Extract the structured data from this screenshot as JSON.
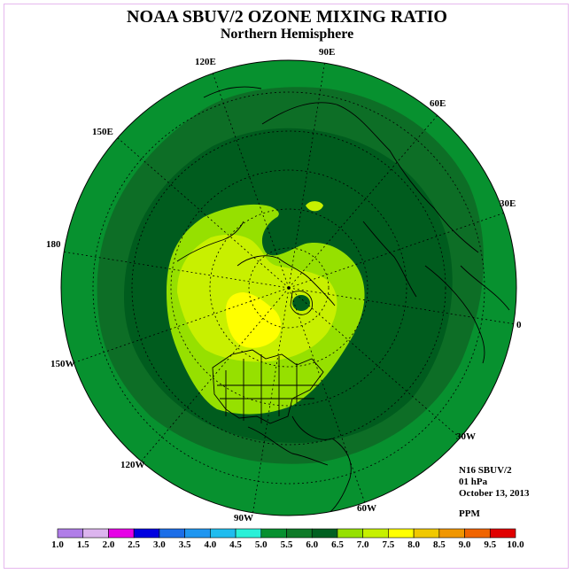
{
  "title": "NOAA SBUV/2 OZONE MIXING RATIO",
  "subtitle": "Northern Hemisphere",
  "info": {
    "instrument": "N16 SBUV/2",
    "level": "01 hPa",
    "date": "October 13, 2013",
    "units": "PPM"
  },
  "longitude_labels": {
    "lon_90E": "90E",
    "lon_60E": "60E",
    "lon_30E": "30E",
    "lon_0": "0",
    "lon_30W": "30W",
    "lon_60W": "60W",
    "lon_90W": "90W",
    "lon_120W": "120W",
    "lon_150W": "150W",
    "lon_180": "180",
    "lon_150E": "150E",
    "lon_120E": "120E"
  },
  "colorbar": {
    "ticks": [
      "1.0",
      "1.5",
      "2.0",
      "2.5",
      "3.0",
      "3.5",
      "4.0",
      "4.5",
      "5.0",
      "5.5",
      "6.0",
      "6.5",
      "7.0",
      "7.5",
      "8.0",
      "8.5",
      "9.0",
      "9.5",
      "10.0"
    ],
    "colors": [
      "#b07de8",
      "#dcb4ee",
      "#e600e6",
      "#0000e0",
      "#1c6ee8",
      "#1f96f0",
      "#20bcee",
      "#2af0d8",
      "#079030",
      "#0e7a28",
      "#006020",
      "#96e000",
      "#c6f000",
      "#ffff00",
      "#f0c800",
      "#f09600",
      "#f06400",
      "#e00000",
      "#905030"
    ]
  }
}
